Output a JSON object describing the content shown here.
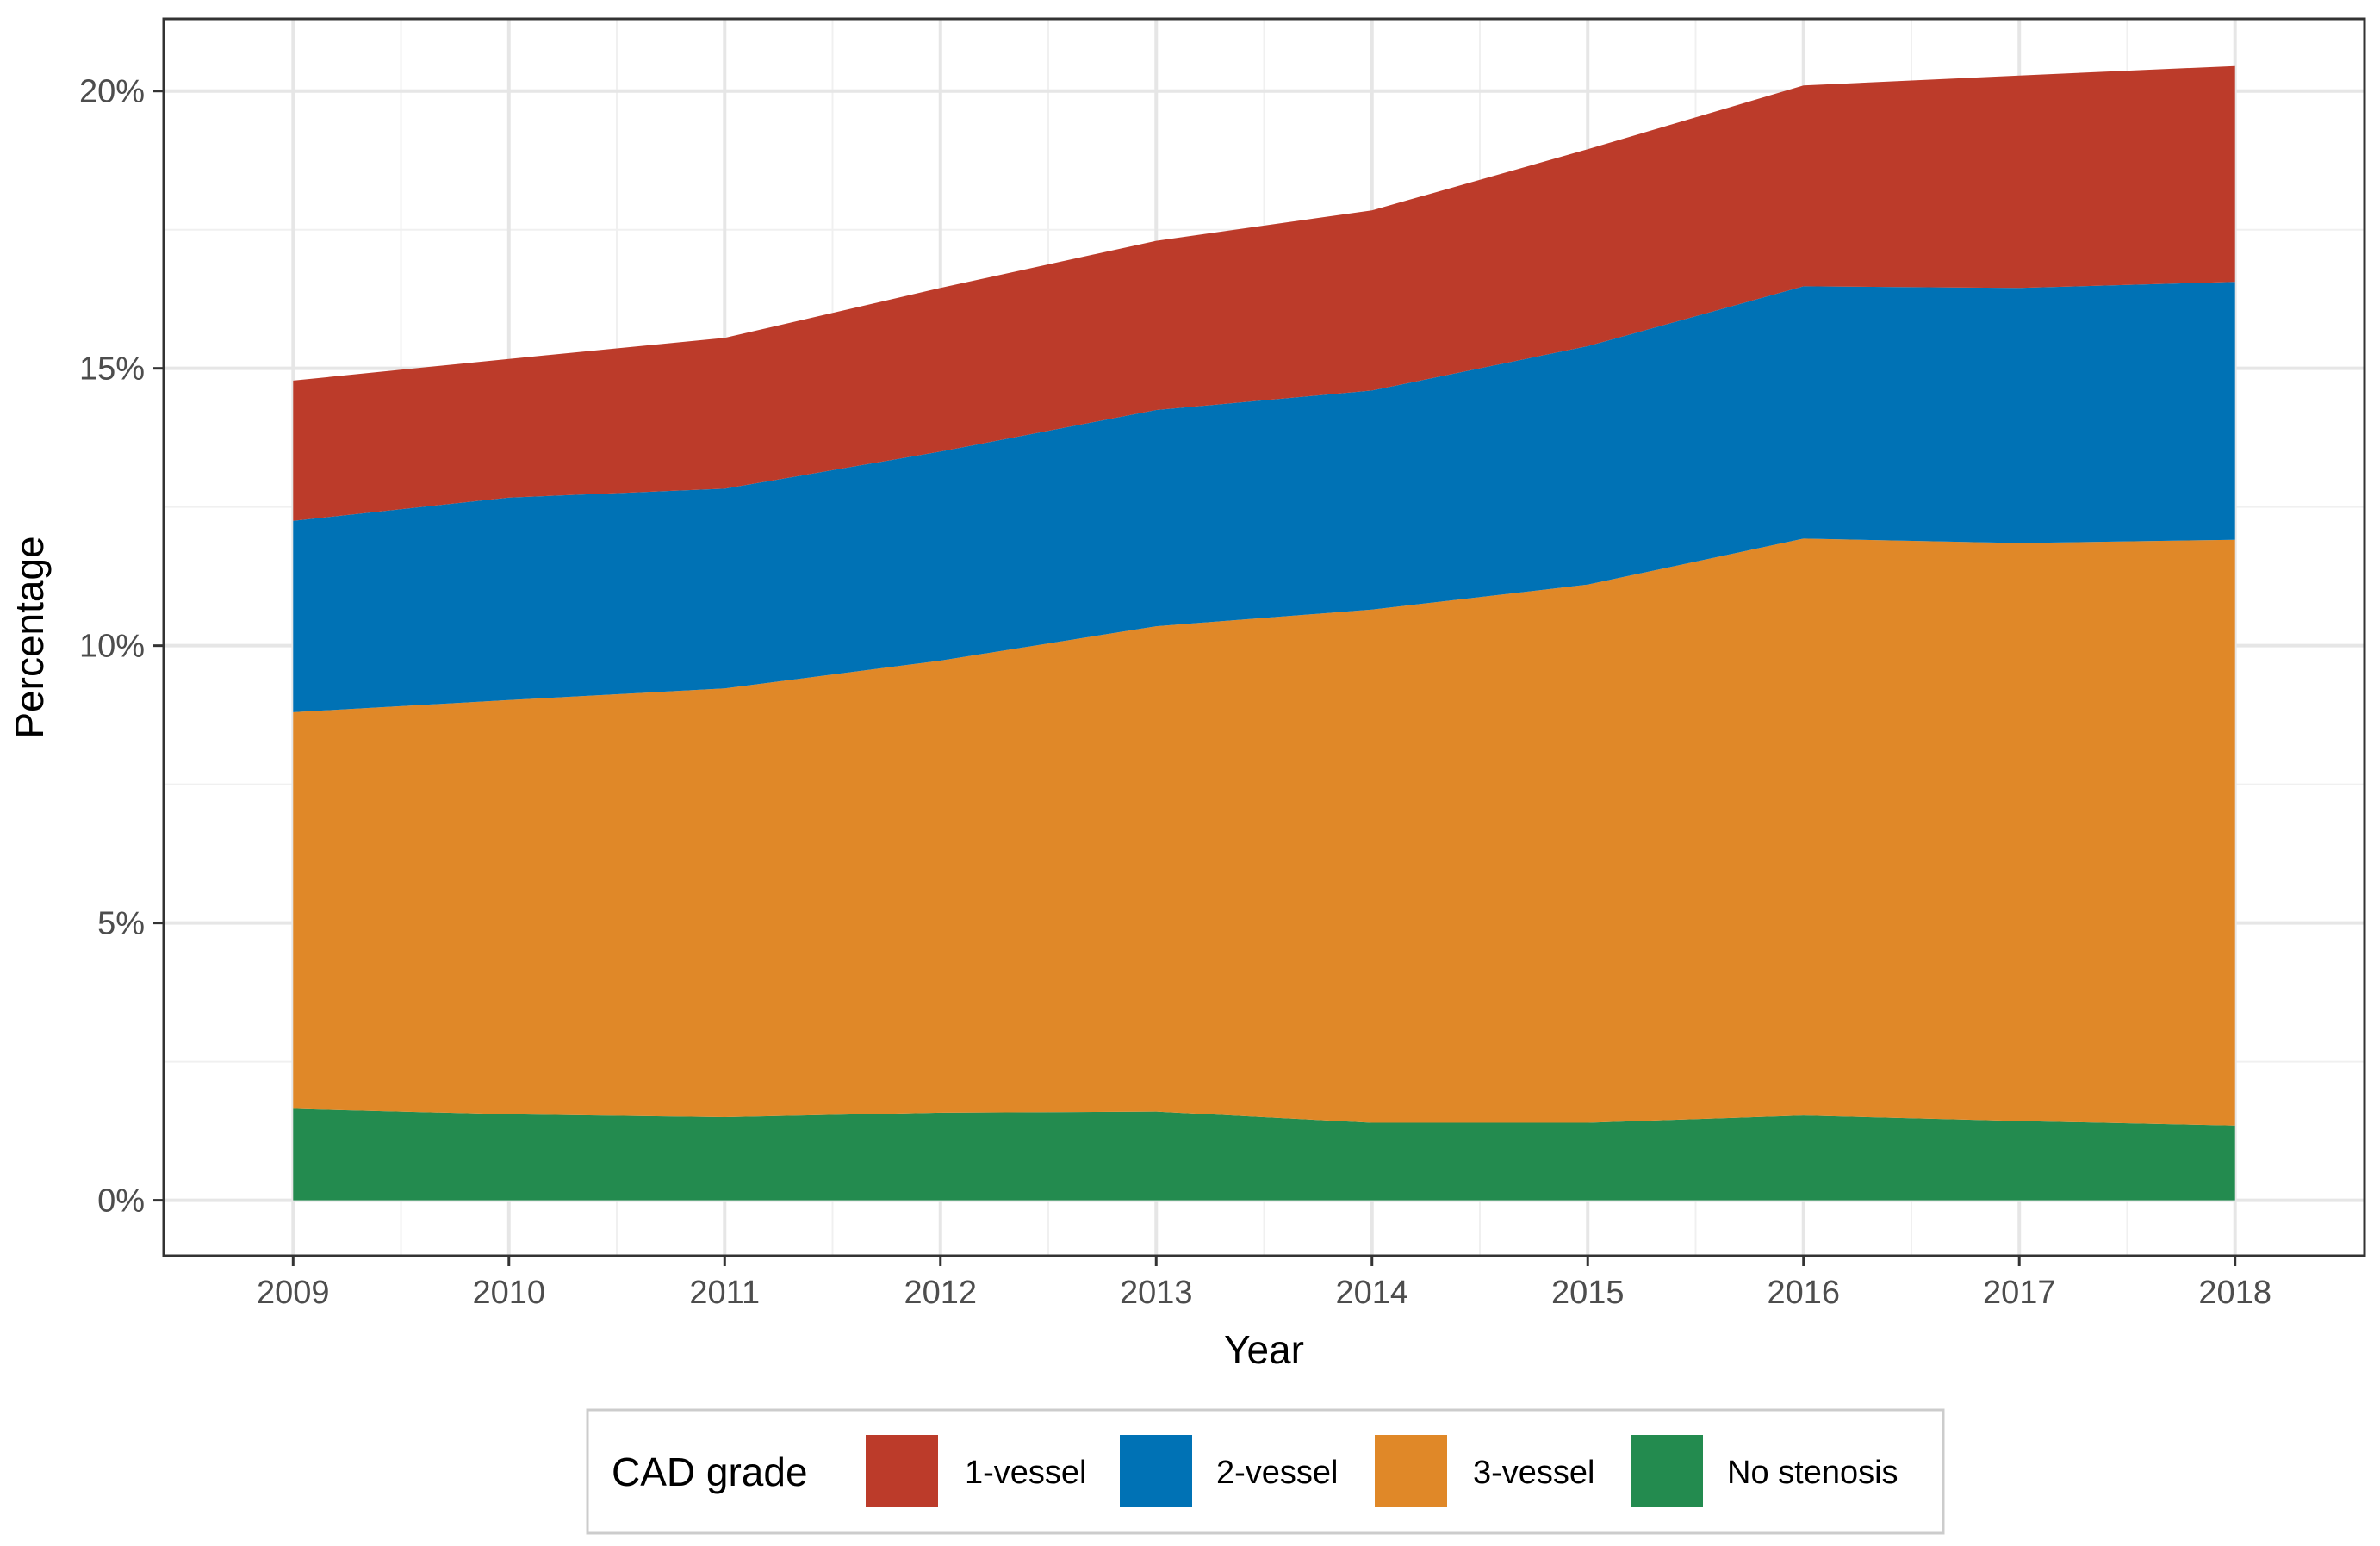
{
  "chart_data": {
    "type": "area",
    "stacked": true,
    "xlabel": "Year",
    "ylabel": "Percentage",
    "x": [
      2009,
      2010,
      2011,
      2012,
      2013,
      2014,
      2015,
      2016,
      2017,
      2018
    ],
    "x_tick_labels": [
      "2009",
      "2010",
      "2011",
      "2012",
      "2013",
      "2014",
      "2015",
      "2016",
      "2017",
      "2018"
    ],
    "ylim": [
      -1.0,
      21.3
    ],
    "y_ticks": [
      0,
      5,
      10,
      15,
      20
    ],
    "y_tick_labels": [
      "0%",
      "5%",
      "10%",
      "15%",
      "20%"
    ],
    "grid": true,
    "legend": {
      "title": "CAD grade",
      "position": "bottom",
      "entries": [
        "1-vessel",
        "2-vessel",
        "3-vessel",
        "No stenosis"
      ]
    },
    "series": [
      {
        "name": "No stenosis",
        "color": "#238B4F",
        "values": [
          1.65,
          1.55,
          1.5,
          1.58,
          1.6,
          1.4,
          1.4,
          1.53,
          1.43,
          1.35
        ]
      },
      {
        "name": "3-vessel",
        "color": "#E08828",
        "values": [
          7.15,
          7.47,
          7.73,
          8.15,
          8.75,
          9.25,
          9.7,
          10.4,
          10.42,
          10.56
        ]
      },
      {
        "name": "2-vessel",
        "color": "#0072B5",
        "values": [
          3.45,
          3.65,
          3.6,
          3.77,
          3.9,
          3.95,
          4.3,
          4.55,
          4.6,
          4.65
        ]
      },
      {
        "name": "1-vessel",
        "color": "#BC3B2A",
        "values": [
          2.53,
          2.5,
          2.72,
          2.95,
          3.05,
          3.25,
          3.55,
          3.62,
          3.83,
          3.89
        ]
      }
    ]
  }
}
